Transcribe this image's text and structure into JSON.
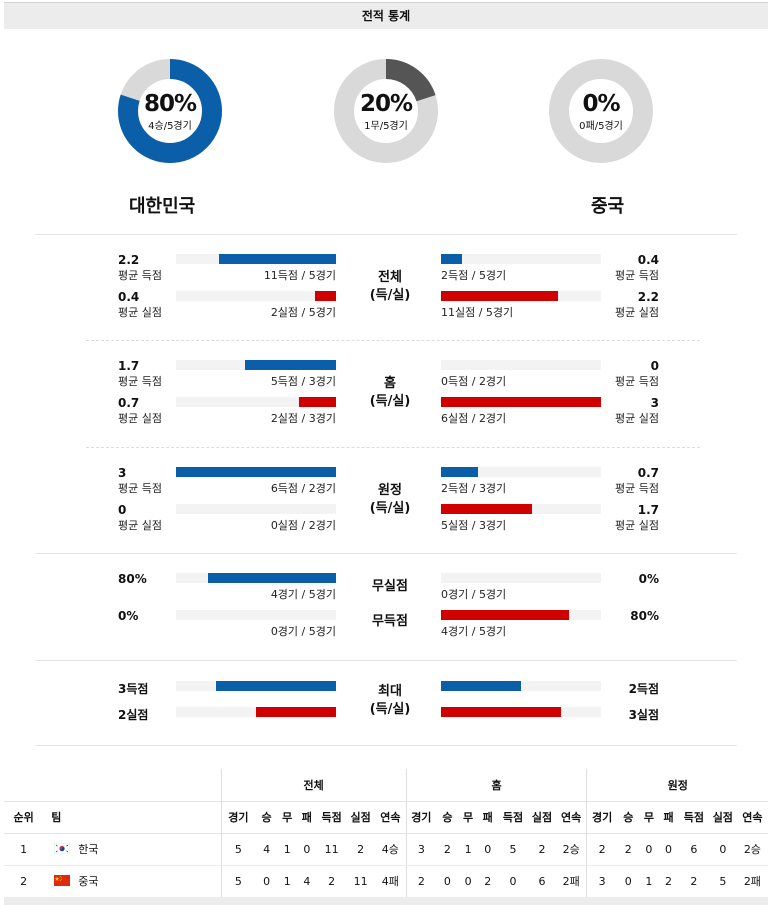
{
  "header": {
    "title": "전적 통계"
  },
  "colors": {
    "blue": "#0b5ea8",
    "red": "#d10000",
    "gray": "#d9d9d9",
    "dark": "#555555"
  },
  "donuts": [
    {
      "pct": "80%",
      "sub": "4승/5경기",
      "fraction": 0.8,
      "color": "#0b5ea8"
    },
    {
      "pct": "20%",
      "sub": "1무/5경기",
      "fraction": 0.2,
      "color": "#555555"
    },
    {
      "pct": "0%",
      "sub": "0패/5경기",
      "fraction": 0.0,
      "color": "#d9d9d9"
    }
  ],
  "teams": {
    "home": "대한민국",
    "away": "중국"
  },
  "sections": [
    {
      "center_lines": [
        "전체",
        "(득/실)"
      ],
      "rows": [
        {
          "left_val": "2.2",
          "left_lbl": "평균 득점",
          "left_cap": "11득점 / 5경기",
          "left_frac": 0.73,
          "left_color": "blue",
          "right_val": "0.4",
          "right_lbl": "평균 득점",
          "right_cap": "2득점 / 5경기",
          "right_frac": 0.13,
          "right_color": "blue"
        },
        {
          "left_val": "0.4",
          "left_lbl": "평균 실점",
          "left_cap": "2실점 / 5경기",
          "left_frac": 0.13,
          "left_color": "red",
          "right_val": "2.2",
          "right_lbl": "평균 실점",
          "right_cap": "11실점 / 5경기",
          "right_frac": 0.73,
          "right_color": "red"
        }
      ]
    },
    {
      "center_lines": [
        "홈",
        "(득/실)"
      ],
      "rows": [
        {
          "left_val": "1.7",
          "left_lbl": "평균 득점",
          "left_cap": "5득점 / 3경기",
          "left_frac": 0.57,
          "left_color": "blue",
          "right_val": "0",
          "right_lbl": "평균 득점",
          "right_cap": "0득점 / 2경기",
          "right_frac": 0.0,
          "right_color": "blue"
        },
        {
          "left_val": "0.7",
          "left_lbl": "평균 실점",
          "left_cap": "2실점 / 3경기",
          "left_frac": 0.23,
          "left_color": "red",
          "right_val": "3",
          "right_lbl": "평균 실점",
          "right_cap": "6실점 / 2경기",
          "right_frac": 1.0,
          "right_color": "red"
        }
      ]
    },
    {
      "center_lines": [
        "원정",
        "(득/실)"
      ],
      "rows": [
        {
          "left_val": "3",
          "left_lbl": "평균 득점",
          "left_cap": "6득점 / 2경기",
          "left_frac": 1.0,
          "left_color": "blue",
          "right_val": "0.7",
          "right_lbl": "평균 득점",
          "right_cap": "2득점 / 3경기",
          "right_frac": 0.23,
          "right_color": "blue"
        },
        {
          "left_val": "0",
          "left_lbl": "평균 실점",
          "left_cap": "0실점 / 2경기",
          "left_frac": 0.0,
          "left_color": "red",
          "right_val": "1.7",
          "right_lbl": "평균 실점",
          "right_cap": "5실점 / 3경기",
          "right_frac": 0.57,
          "right_color": "red"
        }
      ]
    },
    {
      "center_lines": [
        "무실점",
        "무득점"
      ],
      "rows": [
        {
          "left_val": "80%",
          "left_lbl": "",
          "left_cap": "4경기 / 5경기",
          "left_frac": 0.8,
          "left_color": "blue",
          "right_val": "0%",
          "right_lbl": "",
          "right_cap": "0경기 / 5경기",
          "right_frac": 0.0,
          "right_color": "blue"
        },
        {
          "left_val": "0%",
          "left_lbl": "",
          "left_cap": "0경기 / 5경기",
          "left_frac": 0.0,
          "left_color": "red",
          "right_val": "80%",
          "right_lbl": "",
          "right_cap": "4경기 / 5경기",
          "right_frac": 0.8,
          "right_color": "red"
        }
      ]
    },
    {
      "center_lines": [
        "최대",
        "(득/실)"
      ],
      "rows": [
        {
          "left_val": "3득점",
          "left_lbl": "",
          "left_cap": "",
          "left_frac": 0.75,
          "left_color": "blue",
          "right_val": "2득점",
          "right_lbl": "",
          "right_cap": "",
          "right_frac": 0.5,
          "right_color": "blue"
        },
        {
          "left_val": "2실점",
          "left_lbl": "",
          "left_cap": "",
          "left_frac": 0.5,
          "left_color": "red",
          "right_val": "3실점",
          "right_lbl": "",
          "right_cap": "",
          "right_frac": 0.75,
          "right_color": "red"
        }
      ]
    }
  ],
  "standings": {
    "groups": [
      "전체",
      "홈",
      "원정"
    ],
    "headers": [
      "순위",
      "팀",
      "경기",
      "승",
      "무",
      "패",
      "득점",
      "실점",
      "연속",
      "경기",
      "승",
      "무",
      "패",
      "득점",
      "실점",
      "연속",
      "경기",
      "승",
      "무",
      "패",
      "득점",
      "실점",
      "연속"
    ],
    "rows": [
      {
        "rank": "1",
        "team": "한국",
        "flag": "kr",
        "cells": [
          "5",
          "4",
          "1",
          "0",
          "11",
          "2",
          "4승",
          "3",
          "2",
          "1",
          "0",
          "5",
          "2",
          "2승",
          "2",
          "2",
          "0",
          "0",
          "6",
          "0",
          "2승"
        ]
      },
      {
        "rank": "2",
        "team": "중국",
        "flag": "cn",
        "cells": [
          "5",
          "0",
          "1",
          "4",
          "2",
          "11",
          "4패",
          "2",
          "0",
          "0",
          "2",
          "0",
          "6",
          "2패",
          "3",
          "0",
          "1",
          "2",
          "2",
          "5",
          "2패"
        ]
      }
    ]
  }
}
